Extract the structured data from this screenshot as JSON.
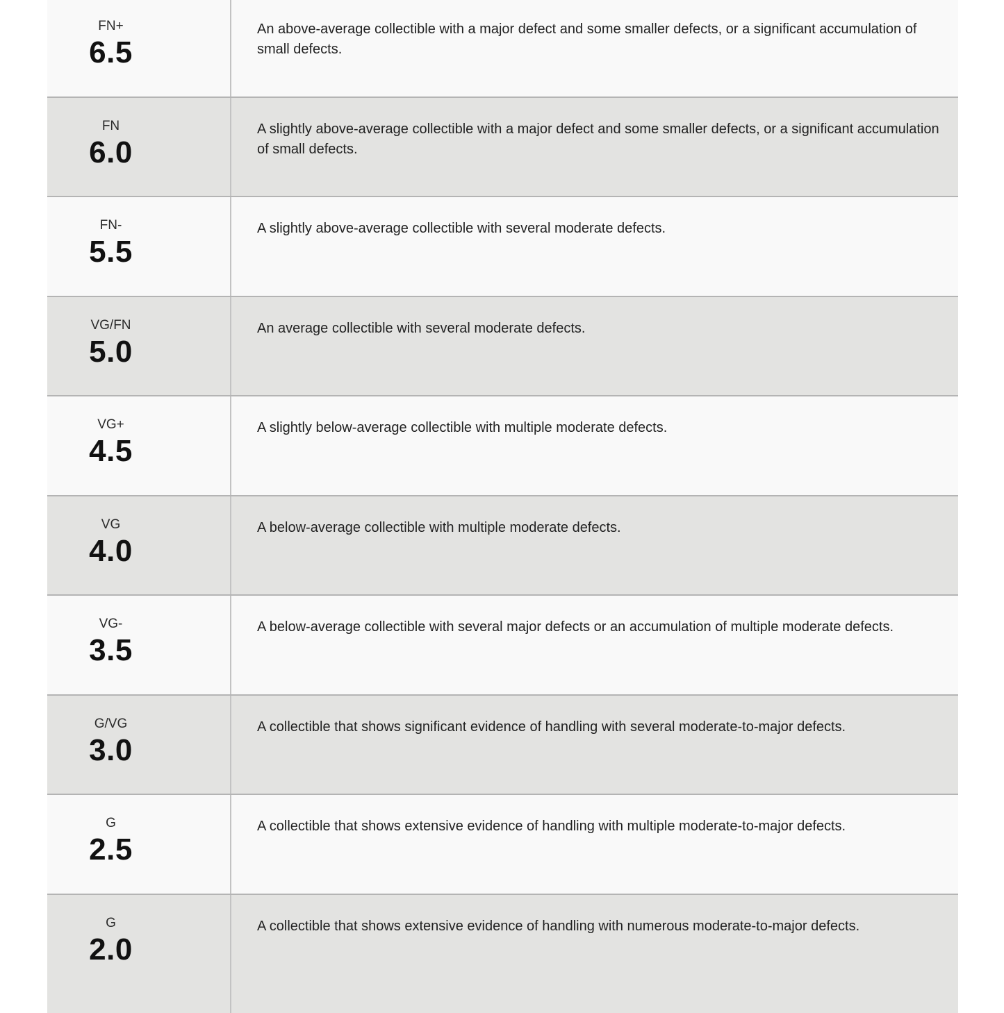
{
  "page": {
    "background_color": "#ffffff"
  },
  "table": {
    "name": "collectible-grading-scale",
    "colors": {
      "row_light": "#f9f9f9",
      "row_dark": "#e3e3e1",
      "row_border": "#b4b4b4",
      "column_divider": "#c3c3c3",
      "text": "#222222"
    },
    "columns": [
      "grade",
      "description"
    ],
    "rows": [
      {
        "grade": "FN+",
        "score": "6.5",
        "description": "An above-average collectible with a major defect and some smaller defects, or a significant accumulation of small defects."
      },
      {
        "grade": "FN",
        "score": "6.0",
        "description": "A slightly above-average collectible with a major defect and some smaller defects, or a significant accumulation of small defects."
      },
      {
        "grade": "FN-",
        "score": "5.5",
        "description": "A slightly above-average collectible with several moderate defects."
      },
      {
        "grade": "VG/FN",
        "score": "5.0",
        "description": "An average collectible with several moderate defects."
      },
      {
        "grade": "VG+",
        "score": "4.5",
        "description": "A slightly below-average collectible with multiple moderate defects."
      },
      {
        "grade": "VG",
        "score": "4.0",
        "description": "A below-average collectible with multiple moderate defects."
      },
      {
        "grade": "VG-",
        "score": "3.5",
        "description": "A below-average collectible with several major defects or an accumulation of multiple moderate defects."
      },
      {
        "grade": "G/VG",
        "score": "3.0",
        "description": "A collectible that shows significant evidence of handling with several moderate-to-major defects."
      },
      {
        "grade": "G",
        "score": "2.5",
        "description": "A collectible that shows extensive evidence of handling with multiple moderate-to-major defects."
      },
      {
        "grade": "G",
        "score": "2.0",
        "description": "A collectible that shows extensive evidence of handling with numerous moderate-to-major defects."
      }
    ]
  }
}
